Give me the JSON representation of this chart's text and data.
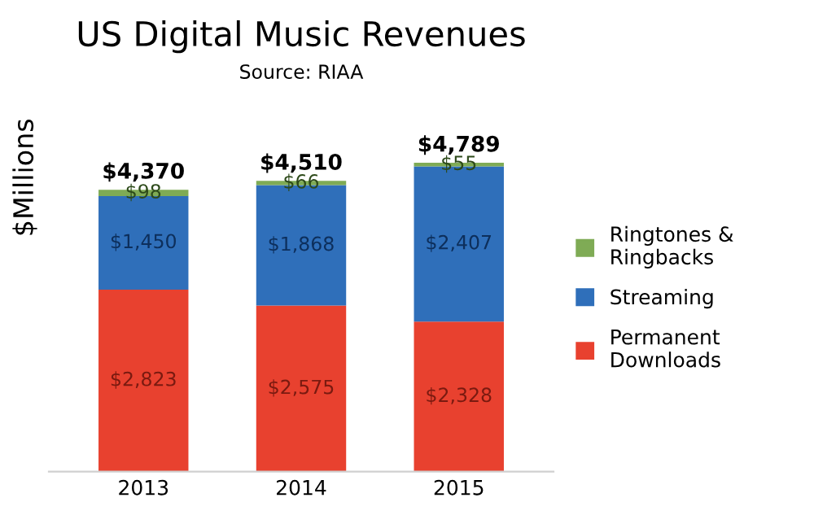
{
  "chart_data": {
    "type": "bar",
    "title": "US Digital Music Revenues",
    "subtitle": "Source: RIAA",
    "ylabel": "$Millions",
    "categories": [
      "2013",
      "2014",
      "2015"
    ],
    "stacked": true,
    "legend": "right",
    "tick_labels": "x",
    "grid": false,
    "series": [
      {
        "name": "Permanent\nDownloads",
        "color": "#e8412f",
        "values": [
          2823,
          2575,
          2328
        ],
        "value_labels": [
          "$2,823",
          "$2,575",
          "$2,328"
        ]
      },
      {
        "name": "Streaming",
        "color": "#2f6fba",
        "values": [
          1450,
          1868,
          2407
        ],
        "value_labels": [
          "$1,450",
          "$1,868",
          "$2,407"
        ]
      },
      {
        "name": "Ringtones &\nRingbacks",
        "color": "#7fab55",
        "values": [
          98,
          66,
          55
        ],
        "value_labels": [
          "$98",
          "$66",
          "$55"
        ]
      }
    ],
    "totals": [
      "$4,370",
      "$4,510",
      "$4,789"
    ]
  }
}
